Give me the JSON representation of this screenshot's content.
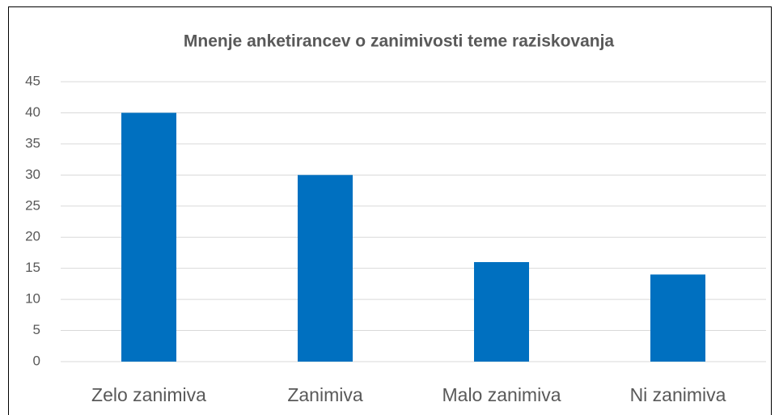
{
  "chart_data": {
    "type": "bar",
    "title": "Mnenje anketirancev o zanimivosti teme raziskovanja",
    "categories": [
      "Zelo zanimiva",
      "Zanimiva",
      "Malo zanimiva",
      "Ni zanimiva"
    ],
    "values": [
      40,
      30,
      16,
      14
    ],
    "color": "#0070c0",
    "ylim": [
      0,
      45
    ],
    "yticks": [
      0,
      5,
      10,
      15,
      20,
      25,
      30,
      35,
      40,
      45
    ],
    "grid": true
  }
}
